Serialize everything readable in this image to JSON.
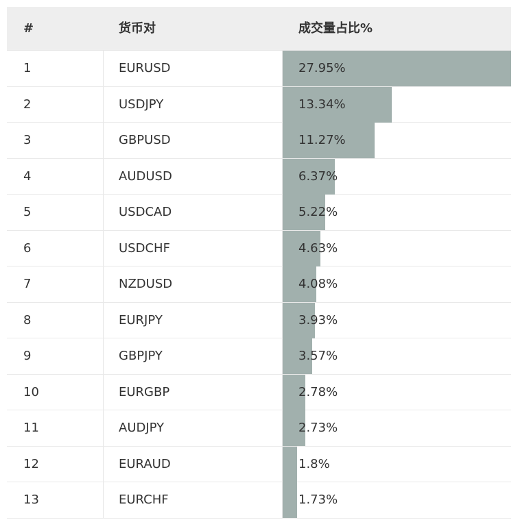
{
  "table": {
    "headers": {
      "rank": "#",
      "pair": "货币对",
      "share": "成交量占比%"
    },
    "bar_color": "#a1b0ad",
    "max_share": 27.95,
    "rows": [
      {
        "rank": "1",
        "pair": "EURUSD",
        "share_label": "27.95%",
        "share": 27.95
      },
      {
        "rank": "2",
        "pair": "USDJPY",
        "share_label": "13.34%",
        "share": 13.34
      },
      {
        "rank": "3",
        "pair": "GBPUSD",
        "share_label": "11.27%",
        "share": 11.27
      },
      {
        "rank": "4",
        "pair": "AUDUSD",
        "share_label": "6.37%",
        "share": 6.37
      },
      {
        "rank": "5",
        "pair": "USDCAD",
        "share_label": "5.22%",
        "share": 5.22
      },
      {
        "rank": "6",
        "pair": "USDCHF",
        "share_label": "4.63%",
        "share": 4.63
      },
      {
        "rank": "7",
        "pair": "NZDUSD",
        "share_label": "4.08%",
        "share": 4.08
      },
      {
        "rank": "8",
        "pair": "EURJPY",
        "share_label": "3.93%",
        "share": 3.93
      },
      {
        "rank": "9",
        "pair": "GBPJPY",
        "share_label": "3.57%",
        "share": 3.57
      },
      {
        "rank": "10",
        "pair": "EURGBP",
        "share_label": "2.78%",
        "share": 2.78
      },
      {
        "rank": "11",
        "pair": "AUDJPY",
        "share_label": "2.73%",
        "share": 2.73
      },
      {
        "rank": "12",
        "pair": "EURAUD",
        "share_label": "1.8%",
        "share": 1.8
      },
      {
        "rank": "13",
        "pair": "EURCHF",
        "share_label": "1.73%",
        "share": 1.73
      }
    ]
  }
}
